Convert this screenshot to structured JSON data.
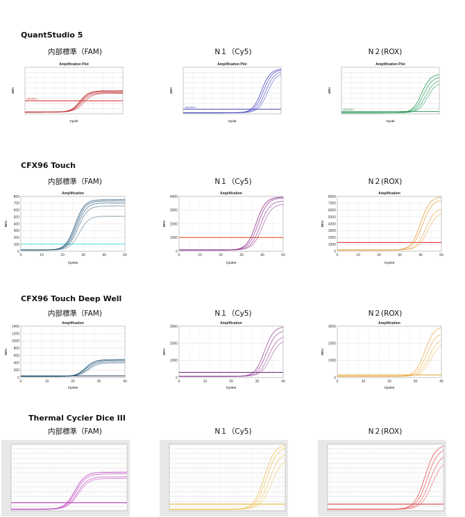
{
  "sections": [
    {
      "title": "QuantStudio 5",
      "columns": [
        "内部標準（FAM)",
        "N１（Cy5)",
        "N２(ROX)"
      ],
      "charts": [
        {
          "title": "Amplification Plot",
          "xlabel": "Cycle",
          "ylabel": "ΔRn",
          "ymax": 1150,
          "threshold": 0.28,
          "color": "#c0202a",
          "thcolor": "#d42828",
          "thlabel": "150,000.0",
          "curves": [
            {
              "mid": 0.56,
              "top": 0.46
            },
            {
              "mid": 0.57,
              "top": 0.44
            },
            {
              "mid": 0.58,
              "top": 0.42
            },
            {
              "mid": 0.6,
              "top": 0.4
            }
          ]
        },
        {
          "title": "Amplification Plot",
          "xlabel": "Cycle",
          "ylabel": "ΔRn",
          "ymax": 800000,
          "threshold": 0.1,
          "color": "#4a47c8",
          "thcolor": "#3a3ab5",
          "thlabel": "150,000.0",
          "curves": [
            {
              "mid": 0.8,
              "top": 0.95
            },
            {
              "mid": 0.82,
              "top": 0.93
            },
            {
              "mid": 0.84,
              "top": 0.9
            },
            {
              "mid": 0.86,
              "top": 0.86
            }
          ]
        },
        {
          "title": "Amplification Plot",
          "xlabel": "Cycle",
          "ylabel": "ΔRn",
          "ymax": 1150,
          "threshold": 0.05,
          "color": "#1e9a58",
          "thcolor": "#1e8a4a",
          "thlabel": "150,000.0",
          "curves": [
            {
              "mid": 0.82,
              "top": 0.84
            },
            {
              "mid": 0.84,
              "top": 0.78
            },
            {
              "mid": 0.86,
              "top": 0.72
            },
            {
              "mid": 0.88,
              "top": 0.66
            }
          ]
        }
      ]
    },
    {
      "title": "CFX96 Touch",
      "columns": [
        "内部標準（FAM)",
        "N１（Cy5)",
        "N２(ROX)"
      ],
      "charts": [
        {
          "title": "Amplification",
          "xlabel": "Cycles",
          "ylabel": "RFU",
          "yticks": [
            "0",
            "100",
            "200",
            "300",
            "400",
            "500",
            "600",
            "700",
            "800"
          ],
          "xticks": [
            "0",
            "10",
            "20",
            "30",
            "40",
            "50"
          ],
          "threshold": 0.13,
          "color": "#2a5a7a",
          "thcolor": "#40e0e0",
          "curves": [
            {
              "mid": 0.52,
              "top": 0.92
            },
            {
              "mid": 0.53,
              "top": 0.89
            },
            {
              "mid": 0.54,
              "top": 0.86
            },
            {
              "mid": 0.55,
              "top": 0.8
            },
            {
              "mid": 0.56,
              "top": 0.62
            }
          ]
        },
        {
          "title": "Amplification",
          "xlabel": "Cycles",
          "ylabel": "RFU",
          "yticks": [
            "0",
            "1000",
            "2000",
            "3000",
            "4000"
          ],
          "xticks": [
            "0",
            "10",
            "20",
            "30",
            "40",
            "50"
          ],
          "threshold": 0.25,
          "color": "#8a2a8a",
          "thcolor": "#e04010",
          "curves": [
            {
              "mid": 0.74,
              "top": 0.97
            },
            {
              "mid": 0.76,
              "top": 0.95
            },
            {
              "mid": 0.78,
              "top": 0.9
            },
            {
              "mid": 0.8,
              "top": 0.84
            }
          ]
        },
        {
          "title": "Amplification",
          "xlabel": "Cycles",
          "ylabel": "RFU",
          "yticks": [
            "0",
            "1000",
            "2000",
            "3000",
            "4000",
            "5000",
            "6000",
            "7000",
            "8000"
          ],
          "xticks": [
            "0",
            "10",
            "20",
            "30",
            "40",
            "50"
          ],
          "threshold": 0.16,
          "color": "#e8a040",
          "thcolor": "#d42020",
          "curves": [
            {
              "mid": 0.8,
              "top": 0.98
            },
            {
              "mid": 0.82,
              "top": 0.92
            },
            {
              "mid": 0.85,
              "top": 0.78
            },
            {
              "mid": 0.87,
              "top": 0.7
            }
          ]
        }
      ]
    },
    {
      "title": "CFX96 Touch Deep Well",
      "columns": [
        "内部標準（FAM)",
        "N１（Cy5)",
        "N２(ROX)"
      ],
      "charts": [
        {
          "title": "Amplification",
          "xlabel": "Cycles",
          "ylabel": "RFU",
          "yticks": [
            "0",
            "200",
            "400",
            "600",
            "800",
            "1000",
            "1200",
            "1400"
          ],
          "xticks": [
            "0",
            "10",
            "20",
            "30",
            "40"
          ],
          "threshold": 0.03,
          "color": "#2a5a7a",
          "thcolor": "#1a3a5a",
          "curves": [
            {
              "mid": 0.62,
              "top": 0.33
            },
            {
              "mid": 0.63,
              "top": 0.31
            },
            {
              "mid": 0.64,
              "top": 0.29
            },
            {
              "mid": 0.65,
              "top": 0.26
            }
          ]
        },
        {
          "title": "Amplification",
          "xlabel": "Cycles",
          "ylabel": "RFU",
          "yticks": [
            "0",
            "1000",
            "2000",
            "3000"
          ],
          "xticks": [
            "0",
            "10",
            "20",
            "30",
            "40"
          ],
          "threshold": 0.1,
          "color": "#9a4aa0",
          "thcolor": "#5a1a6a",
          "curves": [
            {
              "mid": 0.82,
              "top": 0.98
            },
            {
              "mid": 0.84,
              "top": 0.9
            },
            {
              "mid": 0.86,
              "top": 0.8
            },
            {
              "mid": 0.88,
              "top": 0.72
            }
          ]
        },
        {
          "title": "Amplification",
          "xlabel": "Cycles",
          "ylabel": "RFU",
          "yticks": [
            "0",
            "1000",
            "2000",
            "3000"
          ],
          "xticks": [
            "0",
            "10",
            "20",
            "30",
            "40"
          ],
          "threshold": 0.05,
          "color": "#f0b050",
          "thcolor": "#e0a030",
          "curves": [
            {
              "mid": 0.84,
              "top": 0.98
            },
            {
              "mid": 0.86,
              "top": 0.86
            },
            {
              "mid": 0.88,
              "top": 0.76
            },
            {
              "mid": 0.9,
              "top": 0.68
            }
          ]
        }
      ]
    },
    {
      "title": "Thermal Cycler Dice III",
      "columns": [
        "内部標準（FAM)",
        "N１（Cy5)",
        "N２(ROX)"
      ],
      "charts": [
        {
          "color": "#c040c0",
          "threshold": 0.12,
          "thcolor": "#b030b0",
          "curves": [
            {
              "mid": 0.55,
              "top": 0.56
            },
            {
              "mid": 0.56,
              "top": 0.53
            },
            {
              "mid": 0.57,
              "top": 0.49
            },
            {
              "mid": 0.58,
              "top": 0.46
            }
          ]
        },
        {
          "color": "#f0c050",
          "threshold": 0.1,
          "thcolor": "#e0b030",
          "curves": [
            {
              "mid": 0.82,
              "top": 0.98
            },
            {
              "mid": 0.84,
              "top": 0.94
            },
            {
              "mid": 0.86,
              "top": 0.86
            },
            {
              "mid": 0.88,
              "top": 0.76
            }
          ]
        },
        {
          "color": "#e85050",
          "threshold": 0.1,
          "thcolor": "#d03030",
          "curves": [
            {
              "mid": 0.84,
              "top": 0.98
            },
            {
              "mid": 0.86,
              "top": 0.92
            },
            {
              "mid": 0.88,
              "top": 0.84
            },
            {
              "mid": 0.9,
              "top": 0.74
            }
          ]
        }
      ]
    }
  ]
}
